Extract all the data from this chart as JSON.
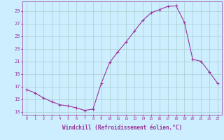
{
  "x": [
    0,
    1,
    2,
    3,
    4,
    5,
    6,
    7,
    8,
    9,
    10,
    11,
    12,
    13,
    14,
    15,
    16,
    17,
    18,
    19,
    20,
    21,
    22,
    23
  ],
  "y": [
    16.5,
    16.0,
    15.2,
    14.6,
    14.1,
    13.9,
    13.6,
    13.2,
    13.4,
    17.5,
    20.8,
    22.5,
    24.1,
    25.8,
    27.5,
    28.7,
    29.2,
    29.7,
    29.8,
    27.2,
    21.3,
    21.0,
    19.3,
    17.5
  ],
  "line_color": "#993399",
  "marker": "+",
  "marker_size": 3,
  "bg_color": "#cceeff",
  "grid_color": "#aacccc",
  "xlabel": "Windchill (Refroidissement éolien,°C)",
  "xlabel_color": "#993399",
  "tick_color": "#993399",
  "ylabel_ticks": [
    13,
    15,
    17,
    19,
    21,
    23,
    25,
    27,
    29
  ],
  "xlim": [
    -0.5,
    23.5
  ],
  "ylim": [
    12.5,
    30.5
  ],
  "xtick_labels": [
    "0",
    "1",
    "2",
    "3",
    "4",
    "5",
    "6",
    "7",
    "8",
    "9",
    "10",
    "11",
    "12",
    "13",
    "14",
    "15",
    "16",
    "17",
    "18",
    "19",
    "20",
    "21",
    "22",
    "23"
  ]
}
